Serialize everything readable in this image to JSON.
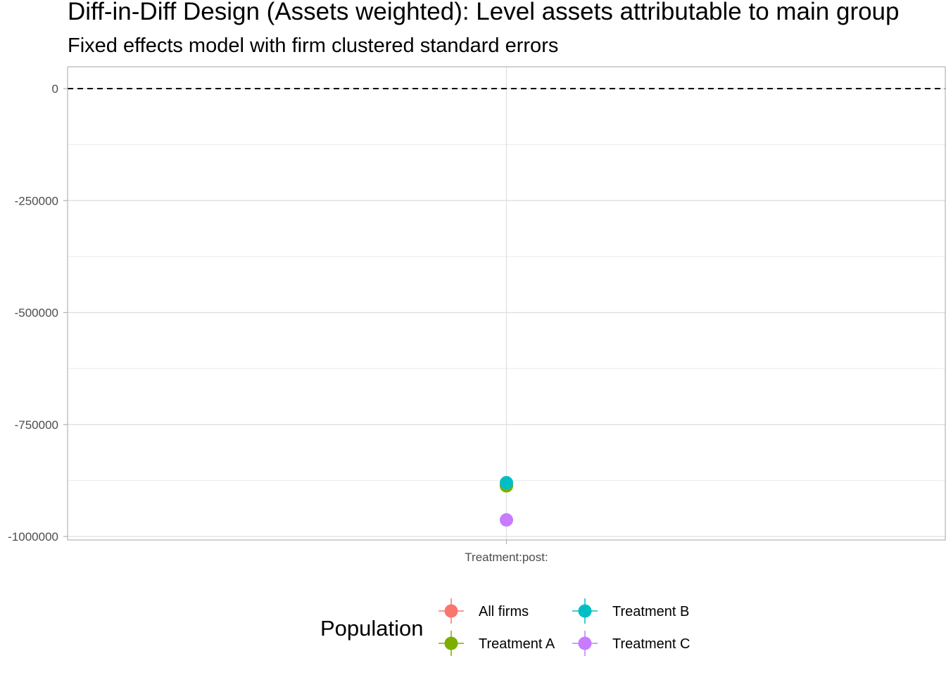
{
  "chart_data": {
    "type": "scatter",
    "title": "Diff-in-Diff Design (Assets weighted): Level assets attributable to main group",
    "subtitle": "Fixed effects model with firm clustered standard errors",
    "xlabel": "",
    "ylabel": "",
    "categories": [
      "Treatment:post:"
    ],
    "ylim": [
      -1000000,
      50000
    ],
    "y_ticks": [
      0,
      -250000,
      -500000,
      -750000,
      -1000000
    ],
    "y_tick_labels": [
      "0",
      "-250000",
      "-500000",
      "-750000",
      "-1000000"
    ],
    "reference_line": {
      "y": 0,
      "style": "dashed"
    },
    "grid": true,
    "legend_position": "bottom",
    "legend_title": "Population",
    "series": [
      {
        "name": "All firms",
        "color": "#F8766D",
        "values": [
          -885000
        ],
        "ci": [
          [
            -890000,
            -880000
          ]
        ]
      },
      {
        "name": "Treatment A",
        "color": "#7CAE00",
        "values": [
          -887000
        ],
        "ci": [
          [
            -892000,
            -882000
          ]
        ]
      },
      {
        "name": "Treatment B",
        "color": "#00BFC4",
        "values": [
          -880000
        ],
        "ci": [
          [
            -885000,
            -875000
          ]
        ]
      },
      {
        "name": "Treatment C",
        "color": "#C77CFF",
        "values": [
          -963000
        ],
        "ci": [
          [
            -968000,
            -958000
          ]
        ]
      }
    ]
  }
}
